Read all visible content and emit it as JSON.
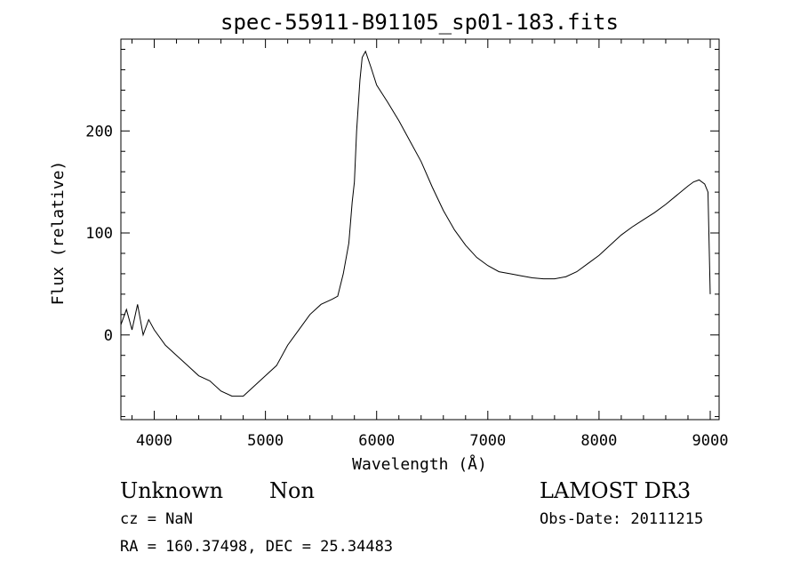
{
  "chart_data": {
    "type": "line",
    "title": "spec-55911-B91105_sp01-183.fits",
    "xlabel": "Wavelength (Å)",
    "ylabel": "Flux (relative)",
    "xlim": [
      3700,
      9080
    ],
    "ylim": [
      -83,
      290
    ],
    "xticks": [
      4000,
      5000,
      6000,
      7000,
      8000,
      9000
    ],
    "yticks": [
      0,
      100,
      200
    ],
    "xtick_labels": [
      "4000",
      "5000",
      "6000",
      "7000",
      "8000",
      "9000"
    ],
    "ytick_labels": [
      "0",
      "100",
      "200"
    ],
    "grid": false,
    "series": [
      {
        "x": [
          3700,
          3750,
          3800,
          3850,
          3900,
          3950,
          4000,
          4100,
          4200,
          4300,
          4400,
          4500,
          4600,
          4700,
          4800,
          4900,
          5000,
          5100,
          5200,
          5300,
          5400,
          5500,
          5600,
          5650,
          5700,
          5750,
          5780,
          5800,
          5820,
          5850,
          5870,
          5900,
          5950,
          6000,
          6100,
          6200,
          6300,
          6400,
          6500,
          6600,
          6700,
          6800,
          6900,
          7000,
          7100,
          7200,
          7300,
          7400,
          7500,
          7600,
          7700,
          7800,
          7900,
          8000,
          8100,
          8200,
          8300,
          8400,
          8500,
          8600,
          8700,
          8800,
          8850,
          8900,
          8950,
          8980,
          9000
        ],
        "values": [
          10,
          25,
          5,
          30,
          0,
          15,
          5,
          -10,
          -20,
          -30,
          -40,
          -45,
          -55,
          -60,
          -60,
          -50,
          -40,
          -30,
          -10,
          5,
          20,
          30,
          35,
          38,
          60,
          90,
          130,
          150,
          200,
          250,
          272,
          278,
          262,
          245,
          228,
          210,
          190,
          170,
          145,
          122,
          103,
          88,
          76,
          68,
          62,
          60,
          58,
          56,
          55,
          55,
          57,
          62,
          70,
          78,
          88,
          98,
          106,
          113,
          120,
          128,
          137,
          146,
          150,
          152,
          148,
          140,
          40
        ]
      }
    ]
  },
  "info": {
    "class_label": "Unknown",
    "subclass_label": "Non",
    "survey": "LAMOST DR3",
    "cz": "cz = NaN",
    "obs_date": "Obs-Date: 20111215",
    "coords": "RA = 160.37498, DEC =  25.34483"
  }
}
